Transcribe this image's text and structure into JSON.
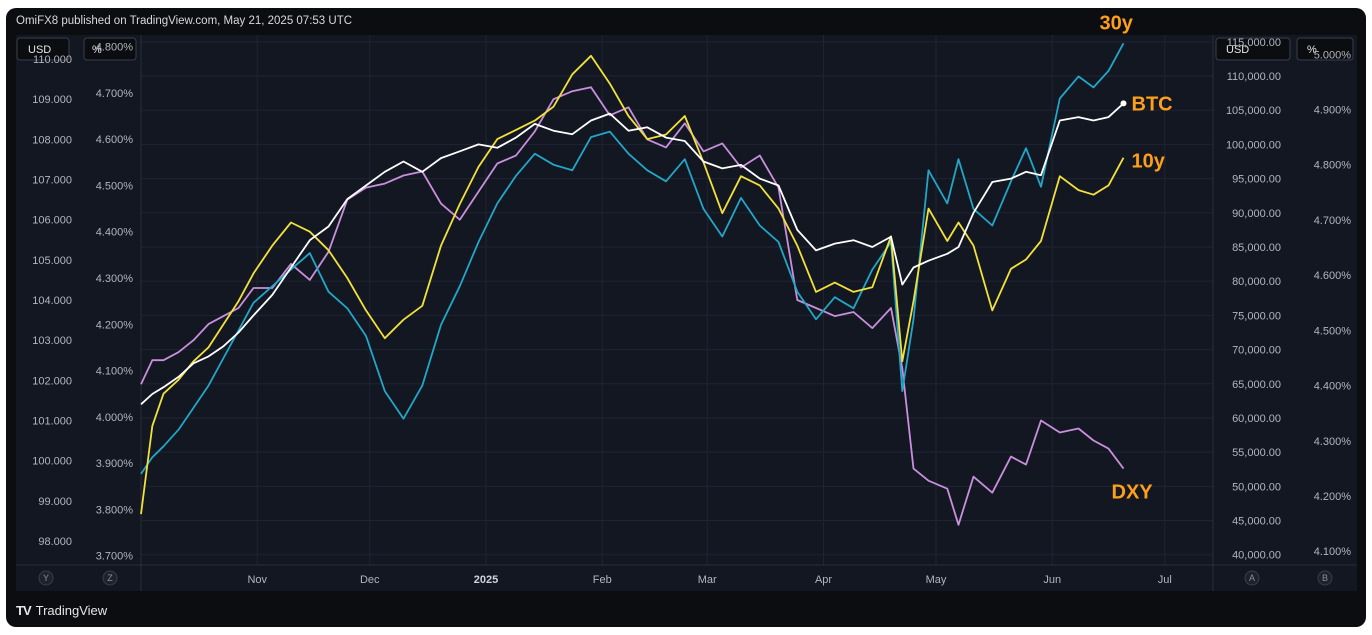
{
  "header": {
    "published": "OmiFX8 published on TradingView.com, May 21, 2025 07:53 UTC"
  },
  "footer": {
    "brand": "TradingView",
    "logo": "TV"
  },
  "units": {
    "left_outer": "USD",
    "left_inner": "%",
    "right_inner": "USD",
    "right_outer": "%"
  },
  "corner_buttons": {
    "bl1": "Y",
    "bl2": "Z",
    "br1": "A",
    "br2": "B"
  },
  "colors": {
    "background": "#131722",
    "grid": "#232838",
    "dxy": "#c98fdc",
    "y30": "#22a6c7",
    "y10": "#f2e13a",
    "btc": "#ffffff",
    "label": "#ff9e1b"
  },
  "chart_data": {
    "type": "line",
    "title": "",
    "x_ticks": [
      "Nov",
      "Dec",
      "2025",
      "Feb",
      "Mar",
      "Apr",
      "May",
      "Jun",
      "Jul"
    ],
    "axes": {
      "left_outer": {
        "unit": "USD",
        "range": [
          97.4,
          110.6
        ],
        "ticks": [
          "110.000",
          "109.000",
          "108.000",
          "107.000",
          "106.000",
          "105.000",
          "104.000",
          "103.000",
          "102.000",
          "101.000",
          "100.000",
          "99.000",
          "98.000"
        ]
      },
      "left_inner": {
        "unit": "%",
        "range": [
          3.68,
          4.825
        ],
        "ticks": [
          "4.800%",
          "4.700%",
          "4.600%",
          "4.500%",
          "4.400%",
          "4.300%",
          "4.200%",
          "4.100%",
          "4.000%",
          "3.900%",
          "3.800%",
          "3.700%"
        ]
      },
      "right_inner": {
        "unit": "USD",
        "range": [
          38500,
          116000
        ],
        "ticks": [
          "115,000.00",
          "110,000.00",
          "105,000.00",
          "100,000.00",
          "95,000.00",
          "90,000.00",
          "85,000.00",
          "80,000.00",
          "75,000.00",
          "70,000.00",
          "65,000.00",
          "60,000.00",
          "55,000.00",
          "50,000.00",
          "45,000.00",
          "40,000.00"
        ]
      },
      "right_outer": {
        "unit": "%",
        "range": [
          4.075,
          5.035
        ],
        "ticks": [
          "5.000%",
          "4.900%",
          "4.800%",
          "4.700%",
          "4.600%",
          "4.500%",
          "4.400%",
          "4.300%",
          "4.200%",
          "4.100%"
        ]
      }
    },
    "series": [
      {
        "name": "DXY",
        "axis": "left_outer",
        "color": "#c98fdc",
        "x": [
          0,
          3,
          6,
          10,
          14,
          18,
          22,
          26,
          30,
          35,
          40,
          45,
          50,
          55,
          60,
          65,
          70,
          75,
          80,
          85,
          90,
          95,
          100,
          105,
          110,
          115,
          120,
          125,
          130,
          135,
          140,
          145,
          150,
          155,
          160,
          165,
          170,
          175,
          180,
          185,
          190,
          195,
          200,
          203,
          206,
          210,
          215,
          218,
          222,
          227,
          232,
          236,
          240,
          245,
          250,
          254,
          258,
          262
        ],
        "values": [
          101.9,
          102.5,
          102.5,
          102.7,
          103.0,
          103.4,
          103.6,
          103.8,
          104.3,
          104.3,
          104.9,
          104.5,
          105.2,
          106.5,
          106.8,
          106.9,
          107.1,
          107.2,
          106.4,
          106.0,
          106.7,
          107.4,
          107.6,
          108.2,
          109.0,
          109.2,
          109.3,
          108.6,
          108.8,
          108.0,
          107.8,
          108.4,
          107.7,
          107.9,
          107.3,
          107.6,
          106.8,
          104.0,
          103.8,
          103.6,
          103.7,
          103.3,
          103.8,
          102.3,
          99.8,
          99.5,
          99.3,
          98.4,
          99.6,
          99.2,
          100.1,
          99.9,
          101.0,
          100.7,
          100.8,
          100.5,
          100.3,
          99.8
        ]
      },
      {
        "name": "30y",
        "axis": "right_outer",
        "color": "#22a6c7",
        "x": [
          0,
          3,
          6,
          10,
          14,
          18,
          22,
          26,
          30,
          35,
          40,
          45,
          50,
          55,
          60,
          65,
          70,
          75,
          80,
          85,
          90,
          95,
          100,
          105,
          110,
          115,
          120,
          125,
          130,
          135,
          140,
          145,
          150,
          155,
          160,
          165,
          170,
          175,
          180,
          185,
          190,
          195,
          200,
          203,
          206,
          210,
          215,
          218,
          222,
          227,
          232,
          236,
          240,
          245,
          250,
          254,
          258,
          262
        ],
        "values": [
          4.24,
          4.27,
          4.29,
          4.32,
          4.36,
          4.4,
          4.45,
          4.5,
          4.55,
          4.58,
          4.61,
          4.64,
          4.57,
          4.54,
          4.49,
          4.39,
          4.34,
          4.4,
          4.51,
          4.58,
          4.66,
          4.73,
          4.78,
          4.82,
          4.8,
          4.79,
          4.85,
          4.86,
          4.82,
          4.79,
          4.77,
          4.81,
          4.72,
          4.67,
          4.74,
          4.69,
          4.66,
          4.57,
          4.52,
          4.56,
          4.54,
          4.61,
          4.66,
          4.39,
          4.52,
          4.79,
          4.73,
          4.81,
          4.72,
          4.69,
          4.77,
          4.83,
          4.76,
          4.92,
          4.96,
          4.94,
          4.97,
          5.02
        ]
      },
      {
        "name": "10y",
        "axis": "left_inner",
        "color": "#f2e13a",
        "x": [
          0,
          3,
          6,
          10,
          14,
          18,
          22,
          26,
          30,
          35,
          40,
          45,
          50,
          55,
          60,
          65,
          70,
          75,
          80,
          85,
          90,
          95,
          100,
          105,
          110,
          115,
          120,
          125,
          130,
          135,
          140,
          145,
          150,
          155,
          160,
          165,
          170,
          175,
          180,
          185,
          190,
          195,
          200,
          203,
          206,
          210,
          215,
          218,
          222,
          227,
          232,
          236,
          240,
          245,
          250,
          254,
          258,
          262
        ],
        "values": [
          3.79,
          3.98,
          4.05,
          4.08,
          4.12,
          4.15,
          4.2,
          4.25,
          4.31,
          4.37,
          4.42,
          4.4,
          4.36,
          4.3,
          4.23,
          4.17,
          4.21,
          4.24,
          4.37,
          4.46,
          4.54,
          4.6,
          4.62,
          4.64,
          4.67,
          4.74,
          4.78,
          4.72,
          4.65,
          4.6,
          4.61,
          4.65,
          4.55,
          4.44,
          4.52,
          4.5,
          4.45,
          4.37,
          4.27,
          4.29,
          4.27,
          4.28,
          4.39,
          4.12,
          4.25,
          4.45,
          4.38,
          4.42,
          4.37,
          4.23,
          4.32,
          4.34,
          4.38,
          4.52,
          4.49,
          4.48,
          4.5,
          4.56
        ]
      },
      {
        "name": "BTC",
        "axis": "right_inner",
        "color": "#ffffff",
        "x": [
          0,
          3,
          6,
          10,
          14,
          18,
          22,
          26,
          30,
          35,
          40,
          45,
          50,
          55,
          60,
          65,
          70,
          75,
          80,
          85,
          90,
          95,
          100,
          105,
          110,
          115,
          120,
          125,
          130,
          135,
          140,
          145,
          150,
          155,
          160,
          165,
          170,
          175,
          180,
          185,
          190,
          195,
          200,
          203,
          206,
          210,
          215,
          218,
          222,
          227,
          232,
          236,
          240,
          245,
          250,
          254,
          258,
          262
        ],
        "values": [
          62000,
          63500,
          64500,
          66000,
          68000,
          69000,
          70500,
          72500,
          75000,
          78000,
          82000,
          86000,
          88000,
          92000,
          94000,
          96000,
          97500,
          96000,
          98000,
          99000,
          100000,
          99500,
          101000,
          103000,
          102000,
          101500,
          103500,
          104500,
          102000,
          102500,
          101000,
          100500,
          97500,
          96500,
          97000,
          95000,
          94000,
          87500,
          84500,
          85500,
          86000,
          85000,
          86500,
          79500,
          82000,
          83000,
          84000,
          85000,
          90000,
          94500,
          95000,
          96000,
          95500,
          103500,
          104000,
          103500,
          104000,
          106000
        ]
      }
    ],
    "annotations": [
      "30y",
      "BTC",
      "10y",
      "DXY"
    ]
  }
}
